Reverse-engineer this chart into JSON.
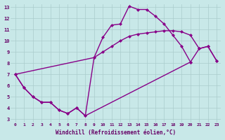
{
  "xlabel": "Windchill (Refroidissement éolien,°C)",
  "background_color": "#c8e8e8",
  "line_color": "#880088",
  "marker": "D",
  "marker_size": 2.5,
  "line_width": 1.0,
  "xlim": [
    -0.5,
    23.5
  ],
  "ylim": [
    2.7,
    13.3
  ],
  "xticks": [
    0,
    1,
    2,
    3,
    4,
    5,
    6,
    7,
    8,
    9,
    10,
    11,
    12,
    13,
    14,
    15,
    16,
    17,
    18,
    19,
    20,
    21,
    22,
    23
  ],
  "yticks": [
    3,
    4,
    5,
    6,
    7,
    8,
    9,
    10,
    11,
    12,
    13
  ],
  "grid_color": "#aacccc",
  "font_family": "monospace",
  "series1_x": [
    0,
    1,
    2,
    3,
    4,
    5,
    6,
    7,
    8,
    9,
    10,
    11,
    12,
    13,
    14,
    15,
    16,
    17,
    18,
    19,
    20
  ],
  "series1_y": [
    7.0,
    5.8,
    5.0,
    4.5,
    4.5,
    3.8,
    3.5,
    4.0,
    3.3,
    8.5,
    10.3,
    11.4,
    11.5,
    13.1,
    12.8,
    12.8,
    12.2,
    11.5,
    10.5,
    9.5,
    8.1
  ],
  "series2_x": [
    0,
    1,
    2,
    3,
    4,
    5,
    6,
    7,
    8,
    20,
    21,
    22,
    23
  ],
  "series2_y": [
    7.0,
    5.8,
    5.0,
    4.5,
    4.5,
    3.8,
    3.5,
    4.0,
    3.3,
    8.1,
    9.3,
    9.5,
    8.2
  ],
  "series3_x": [
    0,
    9,
    10,
    11,
    12,
    13,
    14,
    15,
    16,
    17,
    18,
    19,
    20,
    21,
    22,
    23
  ],
  "series3_y": [
    7.0,
    8.5,
    9.0,
    9.5,
    10.0,
    10.4,
    10.6,
    10.7,
    10.8,
    10.9,
    10.9,
    10.8,
    10.5,
    9.3,
    9.5,
    8.2
  ]
}
